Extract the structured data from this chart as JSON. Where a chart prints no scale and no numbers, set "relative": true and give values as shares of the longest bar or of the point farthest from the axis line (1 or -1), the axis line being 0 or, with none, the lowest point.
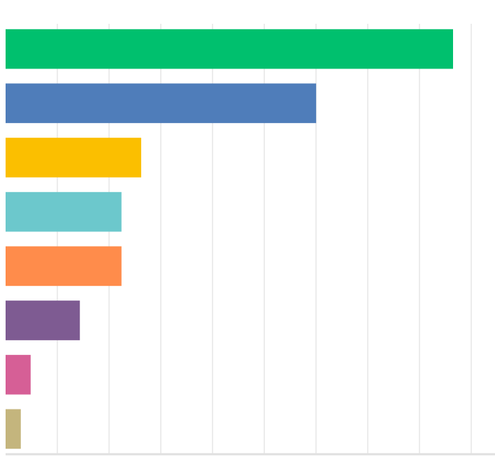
{
  "chart_data": {
    "type": "bar",
    "orientation": "horizontal",
    "relative": true,
    "grid": "x",
    "categories": [
      null,
      null,
      null,
      null,
      null,
      null,
      null,
      null
    ],
    "values": [
      1,
      0.694,
      0.303,
      0.259,
      0.259,
      0.166,
      0.056,
      0.034
    ],
    "colors": [
      "#00c06e",
      "#4f7dba",
      "#fbbf00",
      "#6cc8cc",
      "#ff8c4b",
      "#7e5b92",
      "#d65f96",
      "#c4b57d"
    ]
  }
}
